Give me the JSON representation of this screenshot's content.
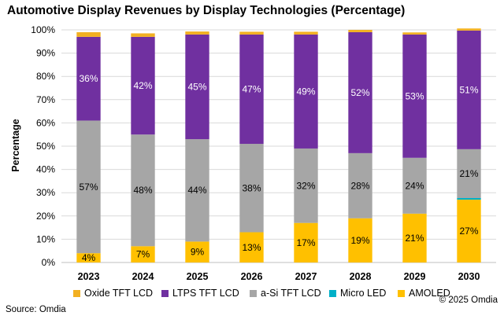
{
  "title": "Automotive Display Revenues by Display Technologies (Percentage)",
  "source": "Source: Omdia",
  "copyright": "© 2025 Omdia",
  "chart_data": {
    "type": "bar",
    "stacked": true,
    "title": "Automotive Display Revenues by Display Technologies (Percentage)",
    "ylabel": "Percentage",
    "xlabel": "",
    "ylim": [
      0,
      100
    ],
    "yticks": [
      "0%",
      "10%",
      "20%",
      "30%",
      "40%",
      "50%",
      "60%",
      "70%",
      "80%",
      "90%",
      "100%"
    ],
    "grid": true,
    "legend_position": "bottom",
    "categories": [
      "2023",
      "2024",
      "2025",
      "2026",
      "2027",
      "2028",
      "2029",
      "2030"
    ],
    "series": [
      {
        "name": "AMOLED",
        "color": "#FFC000",
        "values": [
          4,
          7,
          9,
          13,
          17,
          19,
          21,
          27
        ],
        "labels": [
          "4%",
          "7%",
          "9%",
          "13%",
          "17%",
          "19%",
          "21%",
          "27%"
        ]
      },
      {
        "name": "Micro LED",
        "color": "#00B0C8",
        "values": [
          0,
          0,
          0,
          0,
          0,
          0,
          0,
          0.7
        ],
        "labels": [
          "",
          "",
          "",
          "",
          "",
          "",
          "",
          ""
        ]
      },
      {
        "name": "a-Si TFT LCD",
        "color": "#A6A6A6",
        "values": [
          57,
          48,
          44,
          38,
          32,
          28,
          24,
          21
        ],
        "labels": [
          "57%",
          "48%",
          "44%",
          "38%",
          "32%",
          "28%",
          "24%",
          "21%"
        ]
      },
      {
        "name": "LTPS TFT LCD",
        "color": "#7030A0",
        "values": [
          36,
          42,
          45,
          47,
          49,
          52,
          53,
          51
        ],
        "labels": [
          "36%",
          "42%",
          "45%",
          "47%",
          "49%",
          "52%",
          "53%",
          "51%"
        ]
      },
      {
        "name": "Oxide TFT LCD",
        "color": "#F2B022",
        "values": [
          2,
          1.5,
          1.3,
          1.2,
          1.2,
          1,
          0.9,
          0.9
        ],
        "labels": [
          "",
          "",
          "",
          "",
          "",
          "",
          "",
          ""
        ]
      }
    ],
    "legend_order": [
      "Oxide TFT LCD",
      "LTPS TFT LCD",
      "a-Si TFT LCD",
      "Micro LED",
      "AMOLED"
    ]
  }
}
